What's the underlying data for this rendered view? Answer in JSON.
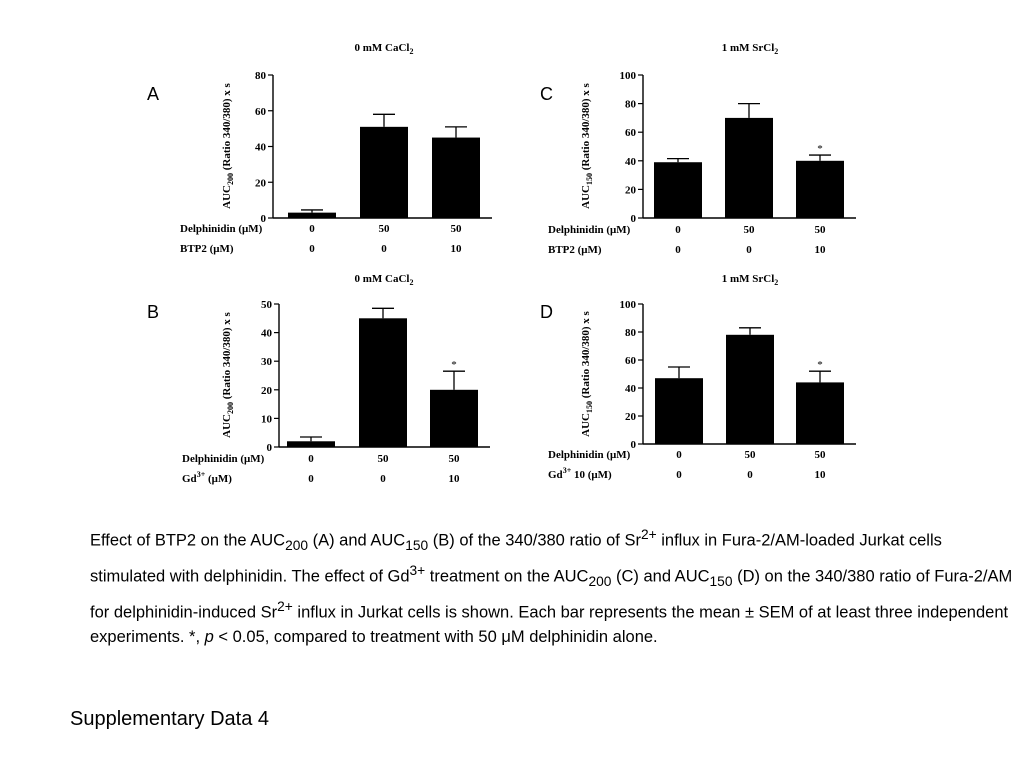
{
  "chart_data": [
    {
      "id": "A",
      "type": "bar",
      "letter": "A",
      "title": "0 mM CaCl",
      "title_sub": "2",
      "ylabel_pre": "AUC",
      "ylabel_sub": "200",
      "ylabel_post": " (Ratio 340/380) x s",
      "ylim": [
        0,
        80
      ],
      "yticks": [
        0,
        20,
        40,
        60,
        80
      ],
      "categories": [
        "1",
        "2",
        "3"
      ],
      "values": [
        3,
        51,
        45
      ],
      "errors": [
        1.5,
        7,
        6
      ],
      "significant": [
        "",
        "",
        ""
      ],
      "conditions": [
        {
          "label": "Delphinidin (μM)",
          "sup": "",
          "values": [
            "0",
            "50",
            "50"
          ]
        },
        {
          "label": "BTP2 (μM)",
          "sup": "",
          "values": [
            "0",
            "0",
            "10"
          ]
        }
      ]
    },
    {
      "id": "C",
      "type": "bar",
      "letter": "C",
      "title": "1 mM SrCl",
      "title_sub": "2",
      "ylabel_pre": "AUC",
      "ylabel_sub": "150",
      "ylabel_post": " (Ratio 340/380) x s",
      "ylim": [
        0,
        100
      ],
      "yticks": [
        0,
        20,
        40,
        60,
        80,
        100
      ],
      "categories": [
        "1",
        "2",
        "3"
      ],
      "values": [
        39,
        70,
        40
      ],
      "errors": [
        2.5,
        10,
        4
      ],
      "significant": [
        "",
        "",
        "*"
      ],
      "conditions": [
        {
          "label": "Delphinidin (μM)",
          "sup": "",
          "values": [
            "0",
            "50",
            "50"
          ]
        },
        {
          "label": "BTP2 (μM)",
          "sup": "",
          "values": [
            "0",
            "0",
            "10"
          ]
        }
      ]
    },
    {
      "id": "B",
      "type": "bar",
      "letter": "B",
      "title": "0 mM CaCl",
      "title_sub": "2",
      "ylabel_pre": "AUC",
      "ylabel_sub": "200",
      "ylabel_post": " (Ratio 340/380) x s",
      "ylim": [
        0,
        50
      ],
      "yticks": [
        0,
        10,
        20,
        30,
        40,
        50
      ],
      "categories": [
        "1",
        "2",
        "3"
      ],
      "values": [
        2,
        45,
        20
      ],
      "errors": [
        1.5,
        3.5,
        6.5
      ],
      "significant": [
        "",
        "",
        "*"
      ],
      "conditions": [
        {
          "label": "Delphinidin (μM)",
          "sup": "",
          "values": [
            "0",
            "50",
            "50"
          ]
        },
        {
          "label": "Gd",
          "sup": "3+",
          "label_post": " (μM)",
          "values": [
            "0",
            "0",
            "10"
          ]
        }
      ]
    },
    {
      "id": "D",
      "type": "bar",
      "letter": "D",
      "title": "1 mM SrCl",
      "title_sub": "2",
      "ylabel_pre": "AUC",
      "ylabel_sub": "150",
      "ylabel_post": " (Ratio 340/380) x s",
      "ylim": [
        0,
        100
      ],
      "yticks": [
        0,
        20,
        40,
        60,
        80,
        100
      ],
      "categories": [
        "1",
        "2",
        "3"
      ],
      "values": [
        47,
        78,
        44
      ],
      "errors": [
        8,
        5,
        8
      ],
      "significant": [
        "",
        "",
        "*"
      ],
      "conditions": [
        {
          "label": "Delphinidin (μM)",
          "sup": "",
          "values": [
            "0",
            "50",
            "50"
          ]
        },
        {
          "label": "Gd",
          "sup": "3+",
          "label_post": " 10 (μM)",
          "values": [
            "0",
            "0",
            "10"
          ]
        }
      ]
    }
  ],
  "caption": {
    "t1": "Effect of BTP2 on the AUC",
    "s1": "200",
    "t2": " (A) and AUC",
    "s2": "150",
    "t3": " (B) of the 340/380 ratio of Sr",
    "p1": "2+",
    "t4": " influx in Fura-2/AM-loaded Jurkat cells  stimulated with delphinidin. The effect of Gd",
    "p2": "3+",
    "t5": " treatment on the AUC",
    "s3": "200",
    "t6": " (C) and AUC",
    "s4": "150",
    "t7": " (D) on the 340/380 ratio of Fura-2/AM for delphinidin-induced Sr",
    "p3": "2+",
    "t8": " influx in Jurkat cells is shown. Each bar represents the mean ± SEM of at least three independent experiments. *, ",
    "i1": "p",
    "t9": " < 0.05, compared to treatment with 50 μM delphinidin alone."
  },
  "footer": "Supplementary Data 4"
}
